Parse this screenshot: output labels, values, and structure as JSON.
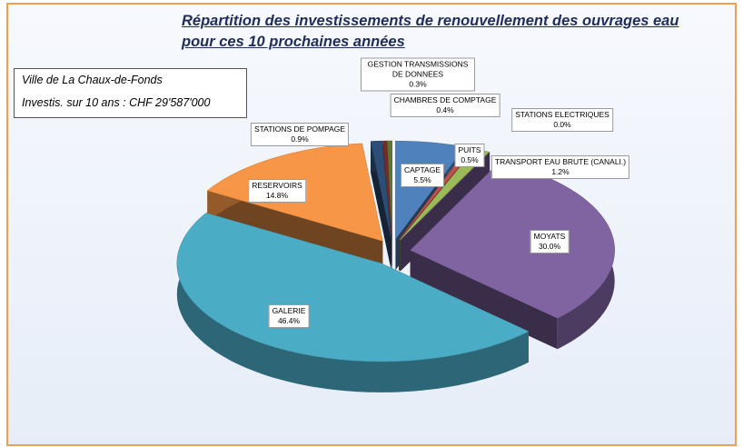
{
  "chart_data": {
    "type": "pie3d",
    "title": [
      "Répartition des investissements de renouvellement des ouvrages eau",
      "pour ces 10 prochaines années"
    ],
    "annotations": [
      "Ville de La Chaux-de-Fonds",
      "Investis. sur 10 ans : CHF 29'587'000"
    ],
    "categories": [
      "CAPTAGE",
      "PUITS",
      "TRANSPORT EAU BRUTE (CANALI.)",
      "STATIONS ELECTRIQUES",
      "MOYATS",
      "GALERIE",
      "RESERVOIRS",
      "STATIONS DE POMPAGE",
      "GESTION TRANSMISSIONS DE DONNEES",
      "CHAMBRES DE COMPTAGE"
    ],
    "values": [
      5.5,
      0.5,
      1.2,
      0,
      30,
      46.4,
      14.8,
      0.9,
      0.3,
      0.4
    ],
    "value_labels": [
      "5.5%",
      "0.5%",
      "1.2%",
      "0.0%",
      "30.0%",
      "46.4%",
      "14.8%",
      "0.9%",
      "0.3%",
      "0.4%"
    ],
    "colors": [
      "#4f81bd",
      "#c0504d",
      "#9bbb59",
      "#8064a2",
      "#8064a2",
      "#4bacc6",
      "#f79646",
      "#2c4d75",
      "#772c2a",
      "#5f7530"
    ]
  }
}
